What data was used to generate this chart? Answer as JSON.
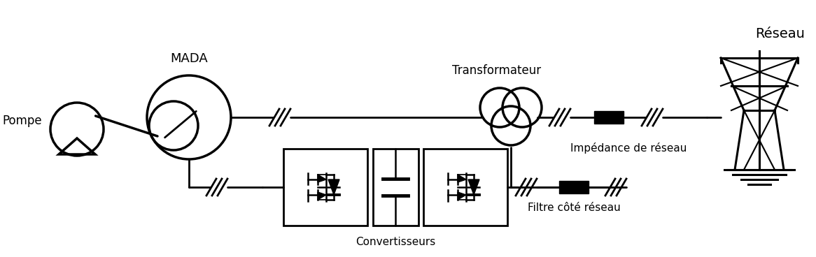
{
  "label_MADA": "MADA",
  "label_Pompe": "Pompe",
  "label_Transformateur": "Transformateur",
  "label_Reseau": "Réseau",
  "label_Impedance": "Impédance de réseau",
  "label_Filtre": "Filtre côté réseau",
  "label_Convertisseurs": "Convertisseurs",
  "figsize": [
    11.66,
    3.68
  ],
  "dpi": 100,
  "bg_color": "#ffffff"
}
